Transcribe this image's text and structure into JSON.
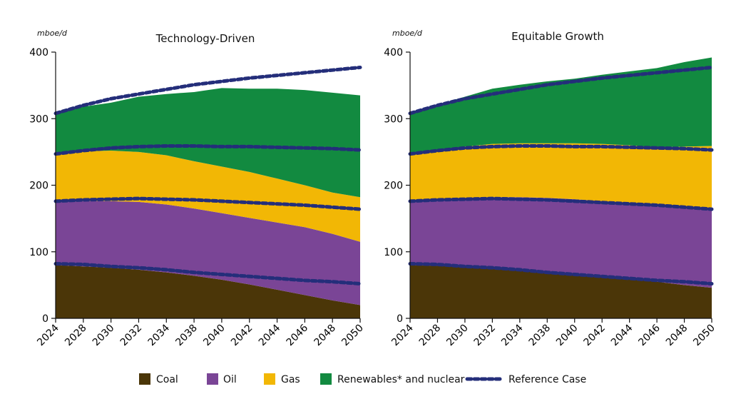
{
  "legend": [
    {
      "label": "Coal",
      "color": "#4b3608"
    },
    {
      "label": "Oil",
      "color": "#7a4596"
    },
    {
      "label": "Gas",
      "color": "#f2b705"
    },
    {
      "label": "Renewables* and nuclear",
      "color": "#128a40"
    },
    {
      "label": "Reference Case",
      "color": "#242e7a",
      "style": "dashed"
    }
  ],
  "chart_data": [
    {
      "type": "area",
      "stacked": true,
      "title": "Technology-Driven",
      "unit_label": "mboe/d",
      "categories": [
        "2024",
        "2028",
        "2030",
        "2032",
        "2034",
        "2038",
        "2040",
        "2042",
        "2044",
        "2046",
        "2048",
        "2050"
      ],
      "ylim": [
        0,
        400
      ],
      "yticks": [
        0,
        100,
        200,
        300,
        400
      ],
      "series": [
        {
          "name": "Coal",
          "values": [
            80,
            78,
            76,
            73,
            69,
            64,
            58,
            51,
            43,
            35,
            27,
            20
          ]
        },
        {
          "name": "Oil",
          "values": [
            95,
            98,
            100,
            102,
            102,
            101,
            100,
            100,
            101,
            102,
            100,
            95
          ]
        },
        {
          "name": "Gas",
          "values": [
            70,
            75,
            76,
            75,
            74,
            71,
            70,
            69,
            66,
            63,
            62,
            67
          ]
        },
        {
          "name": "Renewables* and nuclear",
          "values": [
            63,
            67,
            72,
            83,
            92,
            104,
            118,
            125,
            135,
            143,
            150,
            153
          ]
        }
      ],
      "reference_case": [
        {
          "name": "Reference Case",
          "values": [
            308,
            320,
            330,
            337,
            344,
            351,
            356,
            361,
            365,
            369,
            373,
            377
          ]
        },
        {
          "name": "Reference Case",
          "values": [
            247,
            252,
            256,
            258,
            259,
            259,
            258,
            258,
            257,
            256,
            255,
            253
          ]
        },
        {
          "name": "Reference Case",
          "values": [
            176,
            178,
            179,
            180,
            179,
            178,
            176,
            174,
            172,
            170,
            167,
            164
          ]
        },
        {
          "name": "Reference Case",
          "values": [
            82,
            81,
            78,
            76,
            73,
            69,
            66,
            63,
            60,
            57,
            55,
            52
          ]
        }
      ]
    },
    {
      "type": "area",
      "stacked": true,
      "title": "Equitable Growth",
      "unit_label": "mboe/d",
      "categories": [
        "2024",
        "2028",
        "2030",
        "2032",
        "2034",
        "2038",
        "2040",
        "2042",
        "2044",
        "2046",
        "2048",
        "2050"
      ],
      "ylim": [
        0,
        400
      ],
      "yticks": [
        0,
        100,
        200,
        300,
        400
      ],
      "series": [
        {
          "name": "Coal",
          "values": [
            80,
            79,
            78,
            76,
            73,
            70,
            67,
            64,
            60,
            55,
            50,
            46
          ]
        },
        {
          "name": "Oil",
          "values": [
            95,
            99,
            103,
            106,
            109,
            111,
            112,
            112,
            112,
            113,
            116,
            118
          ]
        },
        {
          "name": "Gas",
          "values": [
            70,
            73,
            77,
            80,
            81,
            82,
            84,
            86,
            88,
            89,
            92,
            95
          ]
        },
        {
          "name": "Renewables* and nuclear",
          "values": [
            63,
            70,
            75,
            83,
            88,
            93,
            97,
            104,
            111,
            119,
            127,
            133
          ]
        }
      ],
      "reference_case": [
        {
          "name": "Reference Case",
          "values": [
            308,
            320,
            330,
            337,
            344,
            351,
            356,
            361,
            365,
            369,
            373,
            377
          ]
        },
        {
          "name": "Reference Case",
          "values": [
            247,
            252,
            256,
            258,
            259,
            259,
            258,
            258,
            257,
            256,
            255,
            253
          ]
        },
        {
          "name": "Reference Case",
          "values": [
            176,
            178,
            179,
            180,
            179,
            178,
            176,
            174,
            172,
            170,
            167,
            164
          ]
        },
        {
          "name": "Reference Case",
          "values": [
            82,
            81,
            78,
            76,
            73,
            69,
            66,
            63,
            60,
            57,
            55,
            52
          ]
        }
      ]
    }
  ]
}
